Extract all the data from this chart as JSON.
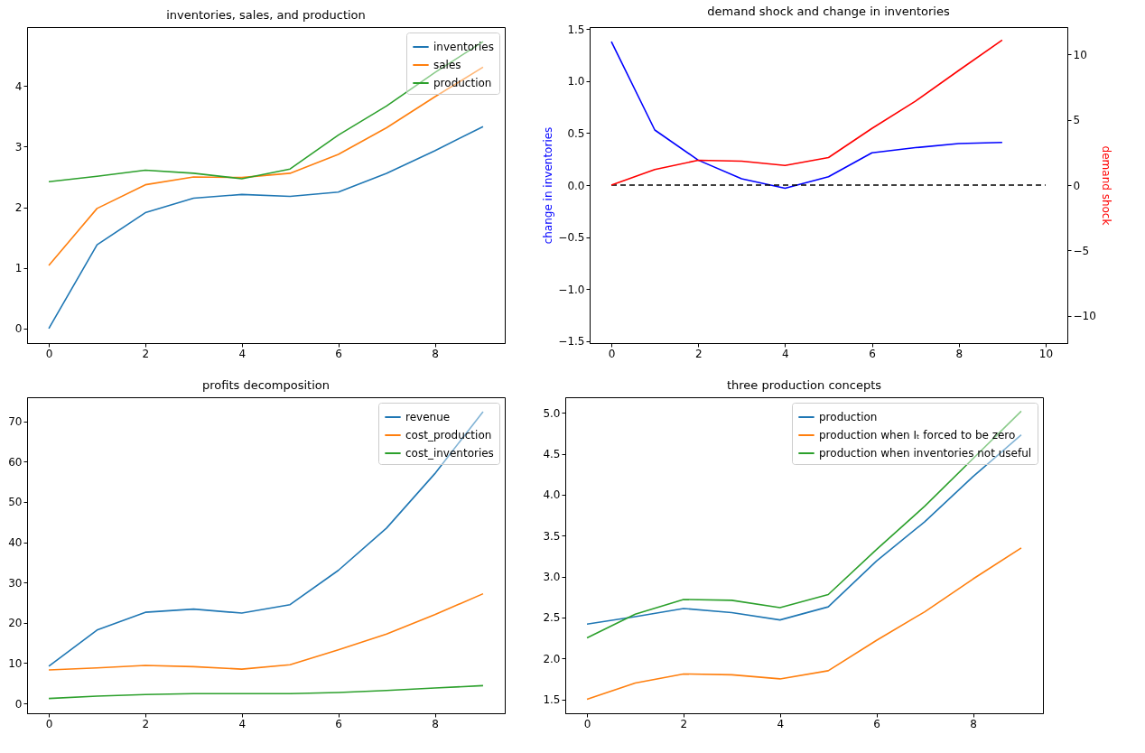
{
  "chart_data": [
    {
      "type": "line",
      "title": "inventories, sales, and production",
      "x": [
        0,
        1,
        2,
        3,
        4,
        5,
        6,
        7,
        8,
        9
      ],
      "xlim": [
        -0.45,
        9.45
      ],
      "xticks": [
        0,
        2,
        4,
        6,
        8
      ],
      "ylim": [
        -0.24,
        4.97
      ],
      "yticks": [
        0,
        1,
        2,
        3,
        4
      ],
      "legend": "top right",
      "series": [
        {
          "name": "inventories",
          "color": "#1f77b4",
          "values": [
            0,
            1.38,
            1.91,
            2.15,
            2.21,
            2.18,
            2.25,
            2.56,
            2.93,
            3.33
          ]
        },
        {
          "name": "sales",
          "color": "#ff7f0e",
          "values": [
            1.04,
            1.98,
            2.37,
            2.5,
            2.49,
            2.56,
            2.87,
            3.31,
            3.82,
            4.31
          ]
        },
        {
          "name": "production",
          "color": "#2ca02c",
          "values": [
            2.42,
            2.51,
            2.61,
            2.56,
            2.47,
            2.63,
            3.19,
            3.67,
            4.22,
            4.73
          ]
        }
      ]
    },
    {
      "type": "line",
      "title": "demand shock and change in inventories",
      "ylabel": "change in inventories",
      "y2label": "demand shock",
      "x": [
        0,
        1,
        2,
        3,
        4,
        5,
        6,
        7,
        8,
        9
      ],
      "xlim": [
        -0.5,
        10.5
      ],
      "xticks": [
        0,
        2,
        4,
        6,
        8,
        10
      ],
      "ylim": [
        -1.52,
        1.52
      ],
      "yticks": [
        -1.5,
        {
          "value": -1,
          "label": "−1.0"
        },
        -0.5,
        {
          "value": 0,
          "label": "0.0"
        },
        0.5,
        {
          "value": 1,
          "label": "1.0"
        },
        1.5
      ],
      "y2lim": [
        -12.1,
        12.1
      ],
      "y2ticks": [
        -10,
        -5,
        0,
        5,
        10
      ],
      "series": [
        {
          "color": "#0000ff",
          "values": [
            1.38,
            0.53,
            0.24,
            0.06,
            -0.03,
            0.08,
            0.31,
            0.36,
            0.4,
            0.41
          ]
        },
        {
          "color": "#ff0000",
          "axis": "y2",
          "values": [
            0,
            1.19,
            1.9,
            1.83,
            1.5,
            2.11,
            4.34,
            6.42,
            8.78,
            11.1
          ]
        },
        {
          "color": "#000000",
          "line_style": "dashed",
          "x": [
            0,
            10
          ],
          "values": [
            0,
            0
          ]
        }
      ]
    },
    {
      "type": "line",
      "title": "profits decomposition",
      "x": [
        0,
        1,
        2,
        3,
        4,
        5,
        6,
        7,
        8,
        9
      ],
      "xlim": [
        -0.45,
        9.45
      ],
      "xticks": [
        0,
        2,
        4,
        6,
        8
      ],
      "ylim": [
        -2.46,
        75.97
      ],
      "yticks": [
        0,
        10,
        20,
        30,
        40,
        50,
        60,
        70
      ],
      "legend": "top right",
      "series": [
        {
          "name": "revenue",
          "color": "#1f77b4",
          "values": [
            9.2,
            18.2,
            22.6,
            23.4,
            22.4,
            24.5,
            33.0,
            43.5,
            57.0,
            72.4
          ]
        },
        {
          "name": "cost_production",
          "color": "#ff7f0e",
          "values": [
            8.3,
            8.8,
            9.4,
            9.1,
            8.5,
            9.6,
            13.3,
            17.2,
            22.0,
            27.2
          ]
        },
        {
          "name": "cost_inventories",
          "color": "#2ca02c",
          "values": [
            1.2,
            1.8,
            2.2,
            2.4,
            2.4,
            2.4,
            2.7,
            3.2,
            3.8,
            4.4
          ]
        }
      ]
    },
    {
      "type": "line",
      "title": "three production concepts",
      "x": [
        0,
        1,
        2,
        3,
        4,
        5,
        6,
        7,
        8,
        9
      ],
      "xlim": [
        -0.45,
        9.45
      ],
      "xticks": [
        0,
        2,
        4,
        6,
        8
      ],
      "ylim": [
        1.33,
        5.19
      ],
      "yticks": [
        1.5,
        {
          "value": 2,
          "label": "2.0"
        },
        2.5,
        {
          "value": 3,
          "label": "3.0"
        },
        3.5,
        {
          "value": 4,
          "label": "4.0"
        },
        4.5,
        {
          "value": 5,
          "label": "5.0"
        }
      ],
      "legend": "top right",
      "series": [
        {
          "name": "production",
          "color": "#1f77b4",
          "values": [
            2.42,
            2.51,
            2.61,
            2.56,
            2.47,
            2.63,
            3.19,
            3.67,
            4.22,
            4.73
          ]
        },
        {
          "name": "production when Iₜ forced to be zero",
          "color": "#ff7f0e",
          "values": [
            1.5,
            1.7,
            1.81,
            1.8,
            1.75,
            1.85,
            2.22,
            2.57,
            2.97,
            3.35
          ]
        },
        {
          "name": "production when inventories not useful",
          "color": "#2ca02c",
          "values": [
            2.25,
            2.54,
            2.72,
            2.71,
            2.62,
            2.78,
            3.33,
            3.86,
            4.44,
            5.02
          ]
        }
      ]
    }
  ]
}
